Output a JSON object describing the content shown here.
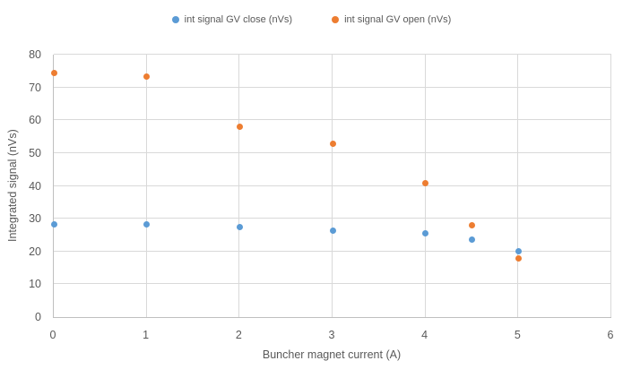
{
  "chart_data": {
    "type": "scatter",
    "title": "",
    "x": [
      0,
      1,
      2,
      3,
      4,
      4.5,
      5
    ],
    "series": [
      {
        "name": "int signal GV close (nVs)",
        "color": "#5B9BD5",
        "values": [
          28.3,
          28.2,
          27.5,
          26.4,
          25.5,
          23.5,
          20.0
        ]
      },
      {
        "name": "int signal GV open (nVs)",
        "color": "#ED7D31",
        "values": [
          74.3,
          73.3,
          57.9,
          52.7,
          40.9,
          27.9,
          17.8
        ]
      }
    ],
    "xlabel": "Buncher magnet current (A)",
    "ylabel": "Integrated signal (nVs)",
    "xlim": [
      0,
      6
    ],
    "ylim": [
      0,
      80
    ],
    "xticks": [
      0,
      1,
      2,
      3,
      4,
      5,
      6
    ],
    "yticks": [
      0,
      10,
      20,
      30,
      40,
      50,
      60,
      70,
      80
    ],
    "grid": true,
    "legend_position": "top-center",
    "marker": "circle"
  },
  "colors": {
    "text": "#595959",
    "gridline": "#D9D9D9",
    "axis_line": "#BFBFBF",
    "background": "#FFFFFF"
  }
}
